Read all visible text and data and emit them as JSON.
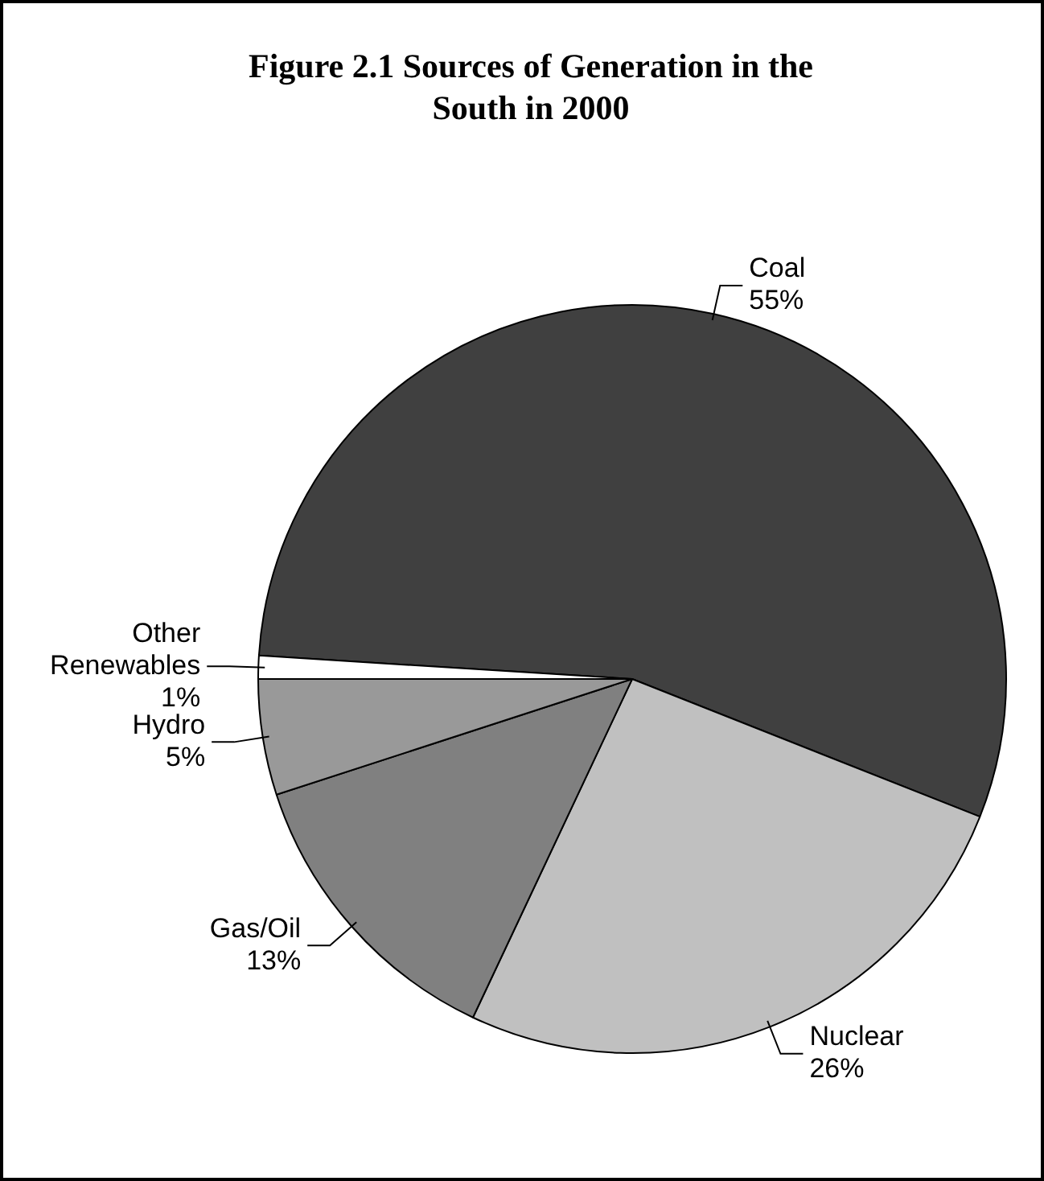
{
  "chart_data": {
    "type": "pie",
    "title": "Figure 2.1  Sources of Generation in the South in 2000",
    "categories": [
      "Coal",
      "Nuclear",
      "Gas/Oil",
      "Hydro",
      "Other Renewables"
    ],
    "values": [
      55,
      26,
      13,
      5,
      1
    ],
    "value_labels": [
      "55%",
      "26%",
      "13%",
      "5%",
      "1%"
    ],
    "colors": [
      "#404040",
      "#c0c0c0",
      "#808080",
      "#999999",
      "#ffffff"
    ],
    "legend": false
  }
}
